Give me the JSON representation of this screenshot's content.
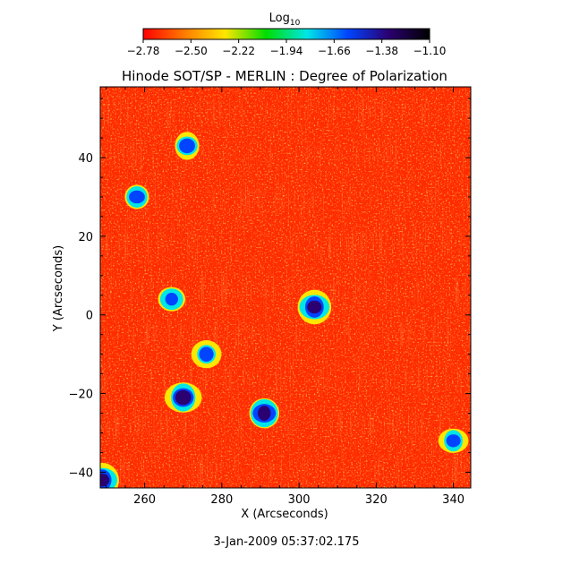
{
  "chart_data": {
    "type": "heatmap",
    "title": "Hinode SOT/SP - MERLIN : Degree of Polarization",
    "xlabel": "X (Arcseconds)",
    "ylabel": "Y (Arcseconds)",
    "timestamp": "3-Jan-2009 05:37:02.175",
    "xlim": [
      248.5,
      344.5
    ],
    "ylim": [
      -44,
      58
    ],
    "xticks": [
      260,
      280,
      300,
      320,
      340
    ],
    "yticks": [
      -40,
      -20,
      0,
      20,
      40
    ],
    "colorbar": {
      "label_base": "Log",
      "label_sub": "10",
      "min": -2.78,
      "max": -1.1,
      "ticks": [
        "-2.78",
        "-2.50",
        "-2.22",
        "-1.94",
        "-1.66",
        "-1.38",
        "-1.10"
      ],
      "colors": [
        "#ff0000",
        "#ff7a00",
        "#ffe600",
        "#00dd00",
        "#00e6e6",
        "#0044ff",
        "#2b0070",
        "#000000"
      ]
    },
    "background_level": -2.7,
    "strong_features": [
      {
        "x": 291,
        "y": -25,
        "value": -1.25
      },
      {
        "x": 304,
        "y": 2,
        "value": -1.35
      },
      {
        "x": 270,
        "y": -21,
        "value": -1.4
      },
      {
        "x": 271,
        "y": 43,
        "value": -1.55
      },
      {
        "x": 267,
        "y": 4,
        "value": -1.55
      },
      {
        "x": 276,
        "y": -10,
        "value": -1.5
      },
      {
        "x": 258,
        "y": 30,
        "value": -1.5
      },
      {
        "x": 249,
        "y": -42,
        "value": -1.4
      },
      {
        "x": 340,
        "y": -32,
        "value": -1.6
      }
    ]
  }
}
